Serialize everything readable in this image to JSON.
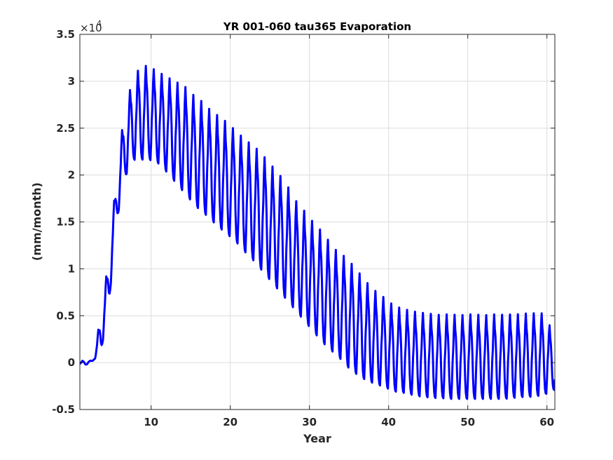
{
  "chart_data": {
    "type": "line",
    "title": "YR 001-060 tau365 Evaporation",
    "xlabel": "Year",
    "ylabel": "(mm/month)",
    "y_multiplier_label": "×10",
    "y_multiplier_exponent": "4",
    "xlim": [
      1,
      61
    ],
    "ylim": [
      -0.5,
      3.5
    ],
    "xticks": [
      10,
      20,
      30,
      40,
      50,
      60
    ],
    "xtick_labels": [
      "10",
      "20",
      "30",
      "40",
      "50",
      "60"
    ],
    "yticks": [
      -0.5,
      0,
      0.5,
      1,
      1.5,
      2,
      2.5,
      3,
      3.5
    ],
    "ytick_labels": [
      "-0.5",
      "0",
      "0.5",
      "1",
      "1.5",
      "2",
      "2.5",
      "3",
      "3.5"
    ],
    "grid": true,
    "series": [
      {
        "color": "#0000ff",
        "annual_peaks": [
          [
            1,
            0.01
          ],
          [
            2,
            0.02
          ],
          [
            3,
            0.02
          ],
          [
            4,
            0.48
          ],
          [
            5,
            1.08
          ],
          [
            6,
            1.98
          ],
          [
            7,
            2.65
          ],
          [
            8,
            2.95
          ],
          [
            9,
            3.1
          ],
          [
            10,
            3.1
          ],
          [
            11,
            3.05
          ],
          [
            12,
            3.0
          ],
          [
            13,
            2.95
          ],
          [
            14,
            2.9
          ],
          [
            15,
            2.85
          ],
          [
            16,
            2.75
          ],
          [
            17,
            2.7
          ],
          [
            18,
            2.6
          ],
          [
            19,
            2.55
          ],
          [
            20,
            2.48
          ],
          [
            21,
            2.4
          ],
          [
            22,
            2.32
          ],
          [
            23,
            2.25
          ],
          [
            24,
            2.18
          ],
          [
            25,
            2.08
          ],
          [
            26,
            1.98
          ],
          [
            27,
            1.88
          ],
          [
            28,
            1.75
          ],
          [
            29,
            1.6
          ],
          [
            30,
            1.52
          ],
          [
            31,
            1.4
          ],
          [
            32,
            1.32
          ],
          [
            33,
            1.2
          ],
          [
            34,
            1.1
          ],
          [
            35,
            1.05
          ],
          [
            36,
            0.95
          ],
          [
            37,
            0.85
          ],
          [
            38,
            0.75
          ],
          [
            39,
            0.68
          ],
          [
            40,
            0.62
          ],
          [
            41,
            0.55
          ],
          [
            42,
            0.52
          ],
          [
            43,
            0.5
          ],
          [
            44,
            0.48
          ],
          [
            45,
            0.47
          ],
          [
            46,
            0.46
          ],
          [
            47,
            0.45
          ],
          [
            48,
            0.46
          ],
          [
            49,
            0.45
          ],
          [
            50,
            0.45
          ],
          [
            51,
            0.46
          ],
          [
            52,
            0.45
          ],
          [
            53,
            0.45
          ],
          [
            54,
            0.46
          ],
          [
            55,
            0.45
          ],
          [
            56,
            0.46
          ],
          [
            57,
            0.46
          ],
          [
            58,
            0.47
          ],
          [
            59,
            0.47
          ],
          [
            60,
            0.47
          ],
          [
            61,
            0.3
          ]
        ],
        "annual_troughs": [
          [
            1,
            -0.02
          ],
          [
            2,
            -0.03
          ],
          [
            3,
            0.02
          ],
          [
            4,
            0.1
          ],
          [
            5,
            0.6
          ],
          [
            6,
            1.5
          ],
          [
            7,
            1.95
          ],
          [
            8,
            2.15
          ],
          [
            9,
            2.15
          ],
          [
            10,
            2.15
          ],
          [
            11,
            2.13
          ],
          [
            12,
            2.05
          ],
          [
            13,
            1.95
          ],
          [
            14,
            1.85
          ],
          [
            15,
            1.75
          ],
          [
            16,
            1.65
          ],
          [
            17,
            1.58
          ],
          [
            18,
            1.5
          ],
          [
            19,
            1.42
          ],
          [
            20,
            1.35
          ],
          [
            21,
            1.28
          ],
          [
            22,
            1.18
          ],
          [
            23,
            1.1
          ],
          [
            24,
            1.0
          ],
          [
            25,
            0.9
          ],
          [
            26,
            0.8
          ],
          [
            27,
            0.7
          ],
          [
            28,
            0.6
          ],
          [
            29,
            0.5
          ],
          [
            30,
            0.4
          ],
          [
            31,
            0.3
          ],
          [
            32,
            0.2
          ],
          [
            33,
            0.12
          ],
          [
            34,
            0.05
          ],
          [
            35,
            -0.05
          ],
          [
            36,
            -0.12
          ],
          [
            37,
            -0.18
          ],
          [
            38,
            -0.22
          ],
          [
            39,
            -0.25
          ],
          [
            40,
            -0.28
          ],
          [
            41,
            -0.32
          ],
          [
            42,
            -0.33
          ],
          [
            43,
            -0.35
          ],
          [
            44,
            -0.37
          ],
          [
            45,
            -0.38
          ],
          [
            46,
            -0.39
          ],
          [
            47,
            -0.39
          ],
          [
            48,
            -0.4
          ],
          [
            49,
            -0.4
          ],
          [
            50,
            -0.4
          ],
          [
            51,
            -0.4
          ],
          [
            52,
            -0.4
          ],
          [
            53,
            -0.4
          ],
          [
            54,
            -0.4
          ],
          [
            55,
            -0.4
          ],
          [
            56,
            -0.39
          ],
          [
            57,
            -0.38
          ],
          [
            58,
            -0.38
          ],
          [
            59,
            -0.37
          ],
          [
            60,
            -0.36
          ],
          [
            61,
            -0.3
          ]
        ]
      }
    ]
  }
}
